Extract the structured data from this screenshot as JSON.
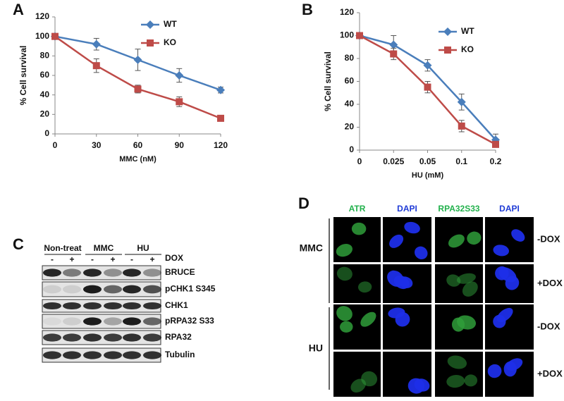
{
  "panel_labels": [
    "A",
    "B",
    "C",
    "D"
  ],
  "chart_data": [
    {
      "type": "line",
      "xlabel": "MMC (nM)",
      "ylabel": "% Cell survival",
      "categories": [
        "0",
        "30",
        "60",
        "90",
        "120"
      ],
      "series": [
        {
          "name": "WT",
          "color": "#4a7ebb",
          "marker": "diamond",
          "values": [
            100,
            92,
            76,
            60,
            45
          ],
          "errors": [
            0,
            6,
            11,
            7,
            3
          ]
        },
        {
          "name": "KO",
          "color": "#be4b48",
          "marker": "square",
          "values": [
            100,
            70,
            46,
            33,
            16
          ],
          "errors": [
            0,
            7,
            4,
            5,
            2
          ]
        }
      ],
      "ylim": [
        0,
        120
      ],
      "yticks": [
        0,
        20,
        40,
        60,
        80,
        100,
        120
      ],
      "legend": "top-right"
    },
    {
      "type": "line",
      "xlabel": "HU (mM)",
      "ylabel": "% Cell survival",
      "categories": [
        "0",
        "0.025",
        "0.05",
        "0.1",
        "0.2"
      ],
      "series": [
        {
          "name": "WT",
          "color": "#4a7ebb",
          "marker": "diamond",
          "values": [
            100,
            92,
            74,
            42,
            9
          ],
          "errors": [
            0,
            8,
            5,
            7,
            5
          ]
        },
        {
          "name": "KO",
          "color": "#be4b48",
          "marker": "square",
          "values": [
            100,
            84,
            55,
            21,
            5
          ],
          "errors": [
            0,
            5,
            5,
            5,
            2
          ]
        }
      ],
      "ylim": [
        0,
        120
      ],
      "yticks": [
        0,
        20,
        40,
        60,
        80,
        100,
        120
      ],
      "legend": "top-right"
    }
  ],
  "blot": {
    "groups": [
      "Non-treat",
      "MMC",
      "HU"
    ],
    "dox_label": "DOX",
    "dox_signs": [
      "-",
      "+",
      "-",
      "+",
      "-",
      "+"
    ],
    "rows": [
      "BRUCE",
      "pCHK1 S345",
      "CHK1",
      "pRPA32 S33",
      "RPA32",
      "Tubulin"
    ]
  },
  "microscopy": {
    "columns": [
      "ATR",
      "DAPI",
      "RPA32S33",
      "DAPI"
    ],
    "treatments": [
      "MMC",
      "HU"
    ],
    "conditions": [
      "-DOX",
      "+DOX",
      "-DOX",
      "+DOX"
    ]
  }
}
